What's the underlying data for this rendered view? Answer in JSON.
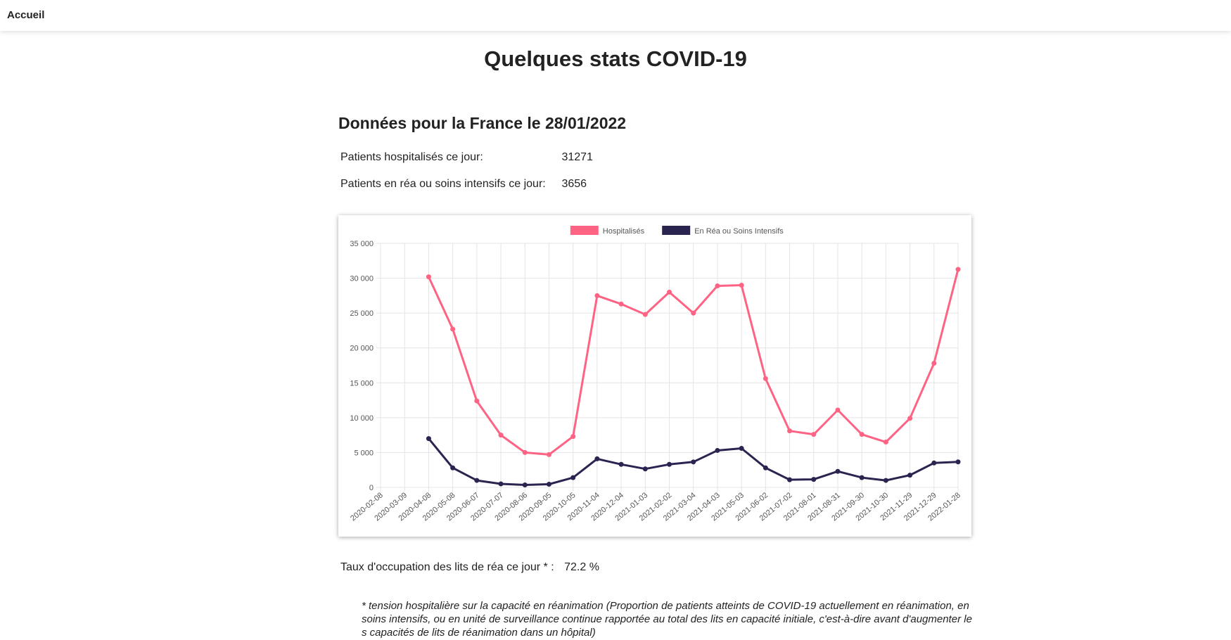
{
  "nav": {
    "home_label": "Accueil"
  },
  "page": {
    "title": "Quelques stats COVID-19"
  },
  "france": {
    "title": "Données pour la France le 28/01/2022",
    "hospitalized_label": "Patients hospitalisés ce jour:",
    "hospitalized_value": "31271",
    "icu_label": "Patients en réa ou soins intensifs ce jour:",
    "icu_value": "3656"
  },
  "occupation": {
    "label": "Taux d'occupation des lits de réa ce jour * :",
    "value": "72.2 %"
  },
  "footnote": "* tension hospitalière sur la capacité en réanimation (Proportion de patients atteints de COVID-19 actuellement en réanimation, en soins intensifs, ou en unité de surveillance continue rapportée au total des lits en capacité initiale, c'est-à-dire avant d'augmenter les capacités de lits de réanimation dans un hôpital)",
  "chart_data": {
    "type": "line",
    "title": "",
    "xlabel": "",
    "ylabel": "",
    "ylim": [
      0,
      35000
    ],
    "yticks": [
      0,
      5000,
      10000,
      15000,
      20000,
      25000,
      30000,
      35000
    ],
    "ytick_labels": [
      "0",
      "5 000",
      "10 000",
      "15 000",
      "20 000",
      "25 000",
      "30 000",
      "35 000"
    ],
    "grid": true,
    "legend_position": "top",
    "categories": [
      "2020-02-08",
      "2020-03-09",
      "2020-04-08",
      "2020-05-08",
      "2020-06-07",
      "2020-07-07",
      "2020-08-06",
      "2020-09-05",
      "2020-10-05",
      "2020-11-04",
      "2020-12-04",
      "2021-01-03",
      "2021-02-02",
      "2021-03-04",
      "2021-04-03",
      "2021-05-03",
      "2021-06-02",
      "2021-07-02",
      "2021-08-01",
      "2021-08-31",
      "2021-09-30",
      "2021-10-30",
      "2021-11-29",
      "2021-12-29",
      "2022-01-28"
    ],
    "series": [
      {
        "name": "Hospitalisés",
        "color": "#ff6384",
        "values": [
          null,
          null,
          30200,
          22700,
          12400,
          7500,
          5000,
          4700,
          7300,
          27500,
          26300,
          24800,
          28000,
          25000,
          28900,
          29000,
          15600,
          8100,
          7600,
          11100,
          7600,
          6500,
          9900,
          17800,
          31271
        ]
      },
      {
        "name": "En Réa ou Soins Intensifs",
        "color": "#2a2550",
        "values": [
          null,
          null,
          7000,
          2800,
          1000,
          500,
          350,
          450,
          1400,
          4100,
          3300,
          2650,
          3300,
          3650,
          5300,
          5600,
          2800,
          1100,
          1150,
          2300,
          1400,
          1000,
          1750,
          3500,
          3656
        ]
      }
    ]
  }
}
